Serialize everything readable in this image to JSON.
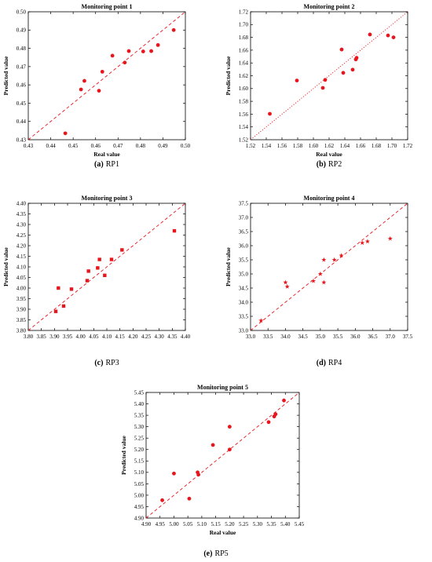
{
  "chart_data": [
    {
      "type": "scatter",
      "title": "Monitoring point 1",
      "xlabel": "Real value",
      "ylabel": "Predicted value",
      "caption_letter": "(a)",
      "caption_text": "RP1",
      "xlim": [
        0.43,
        0.5
      ],
      "ylim": [
        0.43,
        0.5
      ],
      "xticks": [
        "0.43",
        "0.44",
        "0.45",
        "0.46",
        "0.47",
        "0.48",
        "0.49",
        "0.50"
      ],
      "yticks": [
        "0.43",
        "0.44",
        "0.45",
        "0.46",
        "0.47",
        "0.48",
        "0.49",
        "0.50"
      ],
      "marker": "circle",
      "line_style": "dashed",
      "grid": false,
      "color": "#e8161c",
      "x": [
        0.4465,
        0.4535,
        0.455,
        0.4615,
        0.463,
        0.4675,
        0.473,
        0.4748,
        0.4812,
        0.4848,
        0.4878,
        0.4948
      ],
      "y": [
        0.4335,
        0.4575,
        0.4622,
        0.4568,
        0.4672,
        0.476,
        0.4722,
        0.4785,
        0.4783,
        0.4785,
        0.4818,
        0.49
      ]
    },
    {
      "type": "scatter",
      "title": "Monitoring point 2",
      "xlabel": "Real value",
      "ylabel": "Predicted value",
      "caption_letter": "(b)",
      "caption_text": "RP2",
      "xlim": [
        1.52,
        1.72
      ],
      "ylim": [
        1.52,
        1.72
      ],
      "xticks": [
        "1.52",
        "1.54",
        "1.56",
        "1.58",
        "1.60",
        "1.62",
        "1.64",
        "1.66",
        "1.68",
        "1.70",
        "1.72"
      ],
      "yticks": [
        "1.52",
        "1.54",
        "1.56",
        "1.58",
        "1.60",
        "1.62",
        "1.64",
        "1.66",
        "1.68",
        "1.70",
        "1.72"
      ],
      "marker": "circle",
      "line_style": "dotted",
      "grid": false,
      "color": "#e8161c",
      "x": [
        1.5445,
        1.579,
        1.612,
        1.615,
        1.636,
        1.638,
        1.65,
        1.654,
        1.655,
        1.672,
        1.695,
        1.702
      ],
      "y": [
        1.5605,
        1.6125,
        1.601,
        1.6135,
        1.661,
        1.6245,
        1.6295,
        1.6455,
        1.648,
        1.6845,
        1.683,
        1.68
      ]
    },
    {
      "type": "scatter",
      "title": "Monitoring point 3",
      "xlabel": "",
      "ylabel": "Predicted value",
      "caption_letter": "(c)",
      "caption_text": "RP3",
      "xlim": [
        3.8,
        4.4
      ],
      "ylim": [
        3.8,
        4.4
      ],
      "xticks": [
        "3.80",
        "3.85",
        "3.90",
        "3.95",
        "4.00",
        "4.05",
        "4.10",
        "4.15",
        "4.20",
        "4.25",
        "4.30",
        "4.35",
        "4.40"
      ],
      "yticks": [
        "3.80",
        "3.85",
        "3.90",
        "3.95",
        "4.00",
        "4.05",
        "4.10",
        "4.15",
        "4.20",
        "4.25",
        "4.30",
        "4.35",
        "4.40"
      ],
      "marker": "square",
      "line_style": "dashed",
      "grid": false,
      "color": "#e8161c",
      "x": [
        3.905,
        3.915,
        3.935,
        3.965,
        4.025,
        4.03,
        4.065,
        4.072,
        4.092,
        4.118,
        4.158,
        4.358
      ],
      "y": [
        3.89,
        4.0,
        3.915,
        3.995,
        4.035,
        4.08,
        4.095,
        4.135,
        4.06,
        4.135,
        4.18,
        4.27
      ]
    },
    {
      "type": "scatter",
      "title": "Monitoring point 4",
      "xlabel": "",
      "ylabel": "Predicted value",
      "caption_letter": "(d)",
      "caption_text": "RP4",
      "xlim": [
        33.0,
        37.5
      ],
      "ylim": [
        33.0,
        37.5
      ],
      "xticks": [
        "33.0",
        "33.5",
        "34.0",
        "34.5",
        "35.0",
        "35.5",
        "36.0",
        "36.5",
        "37.0",
        "37.5"
      ],
      "yticks": [
        "33.0",
        "33.5",
        "34.0",
        "34.5",
        "35.0",
        "35.5",
        "36.0",
        "36.5",
        "37.0",
        "37.5"
      ],
      "marker": "star",
      "line_style": "dashed",
      "grid": false,
      "color": "#e8161c",
      "x": [
        33.3,
        34.0,
        34.05,
        34.8,
        35.0,
        35.1,
        35.1,
        35.4,
        35.6,
        36.2,
        36.35,
        37.0
      ],
      "y": [
        33.35,
        34.7,
        34.55,
        34.75,
        35.0,
        35.5,
        34.7,
        35.5,
        35.65,
        36.1,
        36.15,
        36.25
      ]
    },
    {
      "type": "scatter",
      "title": "Monitoring point 5",
      "xlabel": "Real value",
      "ylabel": "Predicted value",
      "caption_letter": "(e)",
      "caption_text": "RP5",
      "xlim": [
        4.9,
        5.45
      ],
      "ylim": [
        4.9,
        5.45
      ],
      "xticks": [
        "4.90",
        "4.95",
        "5.00",
        "5.05",
        "5.10",
        "5.15",
        "5.20",
        "5.25",
        "5.30",
        "5.35",
        "5.40",
        "5.45"
      ],
      "yticks": [
        "4.90",
        "4.95",
        "5.00",
        "5.05",
        "5.10",
        "5.15",
        "5.20",
        "5.25",
        "5.30",
        "5.35",
        "5.40",
        "5.45"
      ],
      "marker": "circle",
      "line_style": "dashed",
      "grid": false,
      "color": "#e8161c",
      "x": [
        4.958,
        5.0,
        5.055,
        5.085,
        5.088,
        5.14,
        5.2,
        5.2,
        5.34,
        5.36,
        5.365,
        5.395
      ],
      "y": [
        4.978,
        5.095,
        4.985,
        5.1,
        5.09,
        5.22,
        5.3,
        5.2,
        5.32,
        5.345,
        5.355,
        5.415
      ]
    }
  ]
}
